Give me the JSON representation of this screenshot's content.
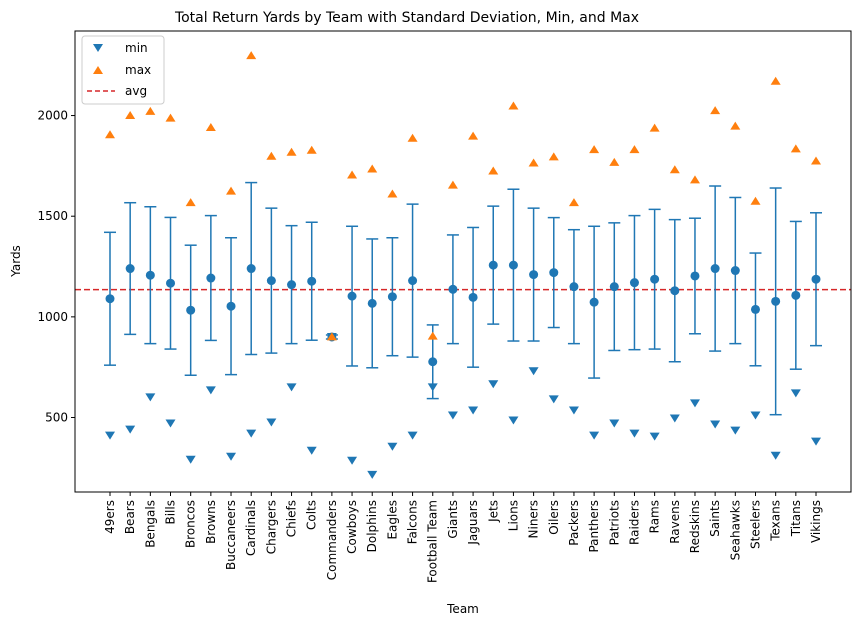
{
  "chart_data": {
    "type": "scatter",
    "title": "Total Return Yards by Team with Standard Deviation, Min, and Max",
    "xlabel": "Team",
    "ylabel": "Yards",
    "ylim": [
      130,
      2420
    ],
    "yticks": [
      500,
      1000,
      1500,
      2000
    ],
    "grid": false,
    "legend_position": "top-left",
    "categories": [
      "49ers",
      "Bears",
      "Bengals",
      "Bills",
      "Broncos",
      "Browns",
      "Buccaneers",
      "Cardinals",
      "Chargers",
      "Chiefs",
      "Colts",
      "Commanders",
      "Cowboys",
      "Dolphins",
      "Eagles",
      "Falcons",
      "Football Team",
      "Giants",
      "Jaguars",
      "Jets",
      "Lions",
      "Niners",
      "Oilers",
      "Packers",
      "Panthers",
      "Patriots",
      "Raiders",
      "Rams",
      "Ravens",
      "Redskins",
      "Saints",
      "Seahawks",
      "Steelers",
      "Texans",
      "Titans",
      "Vikings"
    ],
    "mean": [
      1090,
      1240,
      1207,
      1167,
      1033,
      1193,
      1053,
      1240,
      1180,
      1160,
      1177,
      900,
      1103,
      1067,
      1100,
      1180,
      777,
      1137,
      1097,
      1257,
      1257,
      1210,
      1220,
      1150,
      1073,
      1150,
      1170,
      1187,
      1130,
      1203,
      1240,
      1230,
      1037,
      1077,
      1107,
      1187
    ],
    "std": [
      330,
      327,
      340,
      327,
      323,
      310,
      340,
      427,
      360,
      293,
      293,
      10,
      347,
      320,
      293,
      380,
      183,
      270,
      347,
      293,
      377,
      330,
      273,
      283,
      377,
      317,
      333,
      347,
      353,
      287,
      410,
      363,
      280,
      563,
      367,
      330
    ],
    "min": [
      410,
      440,
      600,
      470,
      290,
      635,
      305,
      420,
      475,
      650,
      335,
      900,
      285,
      215,
      355,
      410,
      650,
      510,
      535,
      665,
      485,
      730,
      590,
      535,
      410,
      470,
      420,
      405,
      495,
      570,
      465,
      435,
      510,
      310,
      620,
      380
    ],
    "max": [
      1907,
      2003,
      2023,
      1990,
      1570,
      1943,
      1627,
      2300,
      1800,
      1820,
      1830,
      903,
      1707,
      1737,
      1613,
      1890,
      907,
      1657,
      1900,
      1727,
      2050,
      1767,
      1797,
      1570,
      1833,
      1770,
      1833,
      1940,
      1733,
      1683,
      2027,
      1950,
      1577,
      2173,
      1837,
      1777
    ],
    "avg": 1135,
    "series": [
      {
        "name": "min",
        "color": "#1f77b4",
        "marker": "triangle-down"
      },
      {
        "name": "max",
        "color": "#ff7f0e",
        "marker": "triangle-up"
      },
      {
        "name": "avg",
        "color": "#d62728",
        "style": "dashed"
      }
    ],
    "errorbar_color": "#1f77b4"
  }
}
